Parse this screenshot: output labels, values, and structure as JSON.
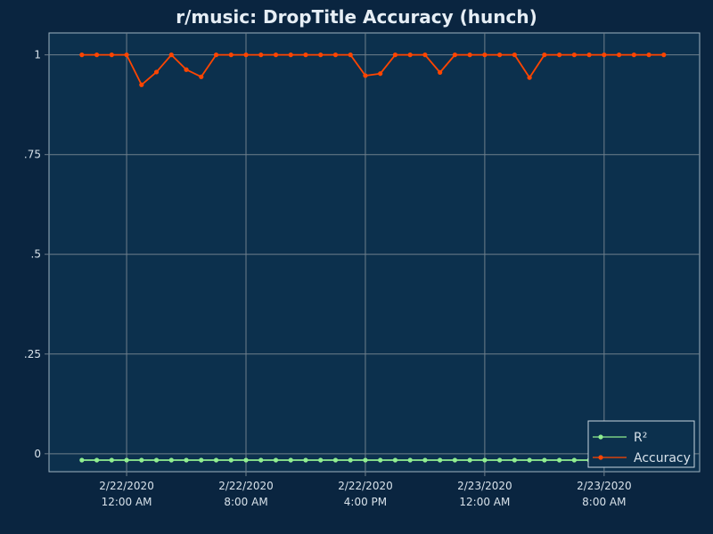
{
  "chart_data": {
    "type": "line",
    "title": "r/music: DropTitle Accuracy (hunch)",
    "xlabel": "",
    "ylabel": "",
    "ylim": [
      -0.045,
      1.055
    ],
    "y_ticks": [
      {
        "value": 0,
        "label": "0"
      },
      {
        "value": 0.25,
        "label": ".25"
      },
      {
        "value": 0.5,
        "label": ".5"
      },
      {
        "value": 0.75,
        "label": ".75"
      },
      {
        "value": 1,
        "label": "1"
      }
    ],
    "x_ticks": [
      {
        "index": 3,
        "line1": "2/22/2020",
        "line2": "12:00 AM"
      },
      {
        "index": 11,
        "line1": "2/22/2020",
        "line2": "8:00 AM"
      },
      {
        "index": 19,
        "line1": "2/22/2020",
        "line2": "4:00 PM"
      },
      {
        "index": 27,
        "line1": "2/23/2020",
        "line2": "12:00 AM"
      },
      {
        "index": 35,
        "line1": "2/23/2020",
        "line2": "8:00 AM"
      }
    ],
    "x_range": [
      -2.2,
      41.4
    ],
    "legend_position": "bottom-right",
    "grid": true,
    "series": [
      {
        "name": "R²",
        "color": "#90ee90",
        "values": [
          -0.016,
          -0.016,
          -0.016,
          -0.016,
          -0.016,
          -0.016,
          -0.016,
          -0.016,
          -0.016,
          -0.016,
          -0.016,
          -0.016,
          -0.016,
          -0.016,
          -0.016,
          -0.016,
          -0.016,
          -0.016,
          -0.016,
          -0.016,
          -0.016,
          -0.016,
          -0.016,
          -0.016,
          -0.016,
          -0.016,
          -0.016,
          -0.016,
          -0.016,
          -0.016,
          -0.016,
          -0.016,
          -0.016,
          -0.016,
          -0.016,
          -0.016,
          -0.016,
          -0.016,
          -0.016,
          -0.016
        ]
      },
      {
        "name": "Accuracy",
        "color": "#ff4500",
        "values": [
          1,
          1,
          1,
          1,
          0.925,
          0.957,
          1,
          0.963,
          0.945,
          1,
          1,
          1,
          1,
          1,
          1,
          1,
          1,
          1,
          1,
          0.948,
          0.953,
          1,
          1,
          1,
          0.956,
          1,
          1,
          1,
          1,
          1,
          0.943,
          1,
          1,
          1,
          1,
          1,
          1,
          1,
          1,
          1
        ]
      }
    ]
  },
  "colors": {
    "page_background": "#0a2540",
    "plot_background": "#0c304d",
    "grid": "#6f7f8c",
    "text": "#d8e2ea"
  }
}
